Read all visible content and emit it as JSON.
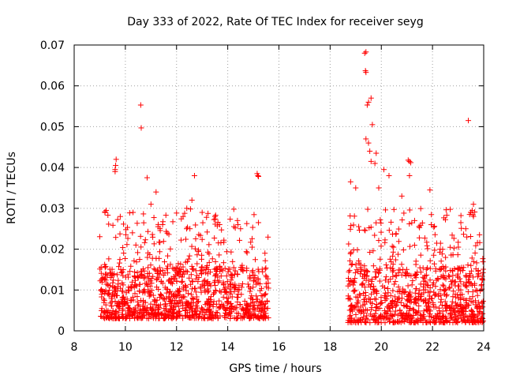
{
  "chart_data": {
    "type": "scatter",
    "title": "Day 333 of 2022, Rate Of TEC Index for receiver seyg",
    "xlabel": "GPS time / hours",
    "ylabel": "ROTI / TECUs",
    "xlim": [
      8,
      24
    ],
    "ylim": [
      0,
      0.07
    ],
    "xticks": [
      8,
      10,
      12,
      14,
      16,
      18,
      20,
      22,
      24
    ],
    "xtick_labels": [
      "8",
      "10",
      "12",
      "14",
      "16",
      "18",
      "20",
      "22",
      "24"
    ],
    "yticks": [
      0,
      0.01,
      0.02,
      0.03,
      0.04,
      0.05,
      0.06,
      0.07
    ],
    "ytick_labels": [
      "0",
      "0.01",
      "0.02",
      "0.03",
      "0.04",
      "0.05",
      "0.06",
      "0.07"
    ],
    "grid": true,
    "marker": "+",
    "color": "#ff0000",
    "series": [
      {
        "name": "ROTI",
        "description_of_dense_bands": [
          {
            "x_range": [
              9.0,
              15.6
            ],
            "y_typical": [
              0.003,
              0.015
            ],
            "y_upper": [
              0.015,
              0.03
            ]
          },
          {
            "x_range": [
              18.7,
              24.0
            ],
            "y_typical": [
              0.002,
              0.015
            ],
            "y_upper": [
              0.015,
              0.03
            ]
          }
        ],
        "points": [
          [
            9.6,
            0.0395
          ],
          [
            9.62,
            0.0405
          ],
          [
            9.64,
            0.042
          ],
          [
            9.6,
            0.039
          ],
          [
            10.6,
            0.0553
          ],
          [
            10.62,
            0.0497
          ],
          [
            10.85,
            0.0375
          ],
          [
            11.2,
            0.034
          ],
          [
            12.7,
            0.038
          ],
          [
            12.6,
            0.032
          ],
          [
            15.15,
            0.0385
          ],
          [
            15.18,
            0.038
          ],
          [
            15.2,
            0.0378
          ],
          [
            15.2,
            0.0265
          ],
          [
            9.2,
            0.029
          ],
          [
            9.25,
            0.0295
          ],
          [
            9.8,
            0.028
          ],
          [
            10.3,
            0.029
          ],
          [
            11.0,
            0.031
          ],
          [
            12.4,
            0.03
          ],
          [
            13.5,
            0.028
          ],
          [
            14.4,
            0.026
          ],
          [
            14.5,
            0.025
          ],
          [
            13.0,
            0.029
          ],
          [
            19.35,
            0.068
          ],
          [
            19.4,
            0.0683
          ],
          [
            19.38,
            0.0637
          ],
          [
            19.4,
            0.0633
          ],
          [
            19.45,
            0.0553
          ],
          [
            19.5,
            0.056
          ],
          [
            19.6,
            0.057
          ],
          [
            19.65,
            0.0505
          ],
          [
            19.4,
            0.047
          ],
          [
            19.5,
            0.046
          ],
          [
            19.55,
            0.044
          ],
          [
            19.6,
            0.0415
          ],
          [
            19.8,
            0.0435
          ],
          [
            19.75,
            0.041
          ],
          [
            21.05,
            0.0418
          ],
          [
            21.1,
            0.0415
          ],
          [
            21.15,
            0.0412
          ],
          [
            21.1,
            0.038
          ],
          [
            20.1,
            0.0395
          ],
          [
            18.8,
            0.0365
          ],
          [
            19.0,
            0.035
          ],
          [
            19.9,
            0.035
          ],
          [
            20.3,
            0.038
          ],
          [
            20.8,
            0.033
          ],
          [
            21.9,
            0.0345
          ],
          [
            21.95,
            0.026
          ],
          [
            23.4,
            0.0515
          ],
          [
            23.5,
            0.029
          ],
          [
            23.55,
            0.0295
          ],
          [
            23.6,
            0.031
          ],
          [
            23.45,
            0.0285
          ],
          [
            23.6,
            0.028
          ],
          [
            23.3,
            0.025
          ],
          [
            22.3,
            0.02
          ],
          [
            21.3,
            0.027
          ]
        ]
      }
    ]
  }
}
